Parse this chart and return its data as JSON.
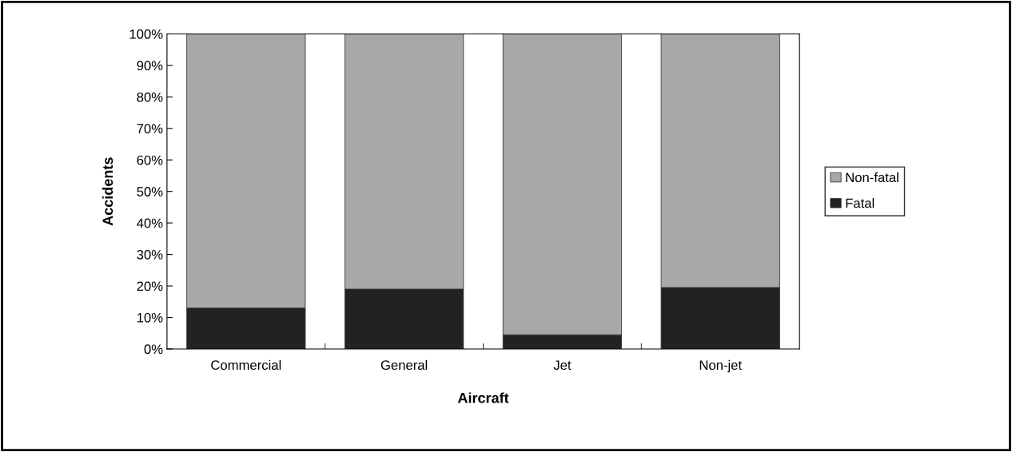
{
  "chart_data": {
    "type": "bar",
    "stacked": true,
    "xlabel": "Aircraft",
    "ylabel": "Accidents",
    "categories": [
      "Commercial",
      "General",
      "Jet",
      "Non-jet"
    ],
    "series": [
      {
        "name": "Fatal",
        "color": "#222222",
        "values": [
          13,
          19,
          4.5,
          19.5
        ]
      },
      {
        "name": "Non-fatal",
        "color": "#a8a8a8",
        "values": [
          87,
          81,
          95.5,
          80.5
        ]
      }
    ],
    "ylim": [
      0,
      100
    ],
    "yticks": [
      {
        "value": 0,
        "label": "0%"
      },
      {
        "value": 10,
        "label": "10%"
      },
      {
        "value": 20,
        "label": "20%"
      },
      {
        "value": 30,
        "label": "30%"
      },
      {
        "value": 40,
        "label": "40%"
      },
      {
        "value": 50,
        "label": "50%"
      },
      {
        "value": 60,
        "label": "60%"
      },
      {
        "value": 70,
        "label": "70%"
      },
      {
        "value": 80,
        "label": "80%"
      },
      {
        "value": 90,
        "label": "90%"
      },
      {
        "value": 100,
        "label": "100%"
      }
    ],
    "grid": false,
    "legend": "right"
  }
}
